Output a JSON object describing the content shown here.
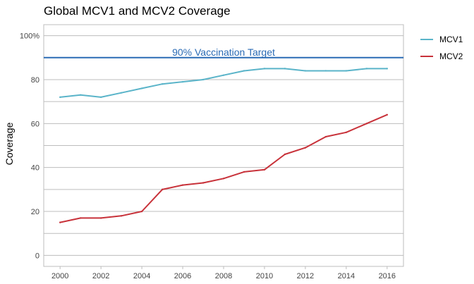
{
  "chart_data": {
    "type": "line",
    "title": "Global MCV1 and MCV2 Coverage",
    "xlabel": "",
    "ylabel": "Coverage",
    "x": [
      2000,
      2001,
      2002,
      2003,
      2004,
      2005,
      2006,
      2007,
      2008,
      2009,
      2010,
      2011,
      2012,
      2013,
      2014,
      2015,
      2016
    ],
    "xlim": [
      1999.2,
      2016.8
    ],
    "ylim": [
      -5,
      105
    ],
    "xticks": [
      2000,
      2002,
      2004,
      2006,
      2008,
      2010,
      2012,
      2014,
      2016
    ],
    "yticks": [
      0,
      20,
      40,
      60,
      80,
      100
    ],
    "ytick_labels": [
      "0",
      "20",
      "40",
      "60",
      "80",
      "100%"
    ],
    "grid": true,
    "legend_position": "right",
    "series": [
      {
        "name": "MCV1",
        "color": "#5ab4c9",
        "values": [
          72,
          73,
          72,
          74,
          76,
          78,
          79,
          80,
          82,
          84,
          85,
          85,
          84,
          84,
          84,
          85,
          85
        ]
      },
      {
        "name": "MCV2",
        "color": "#c8323a",
        "values": [
          15,
          17,
          17,
          18,
          20,
          30,
          32,
          33,
          35,
          38,
          39,
          46,
          49,
          54,
          56,
          60,
          64
        ]
      }
    ],
    "reference_line": {
      "y": 90,
      "label": "90% Vaccination Target",
      "color": "#2a6bb5"
    }
  }
}
